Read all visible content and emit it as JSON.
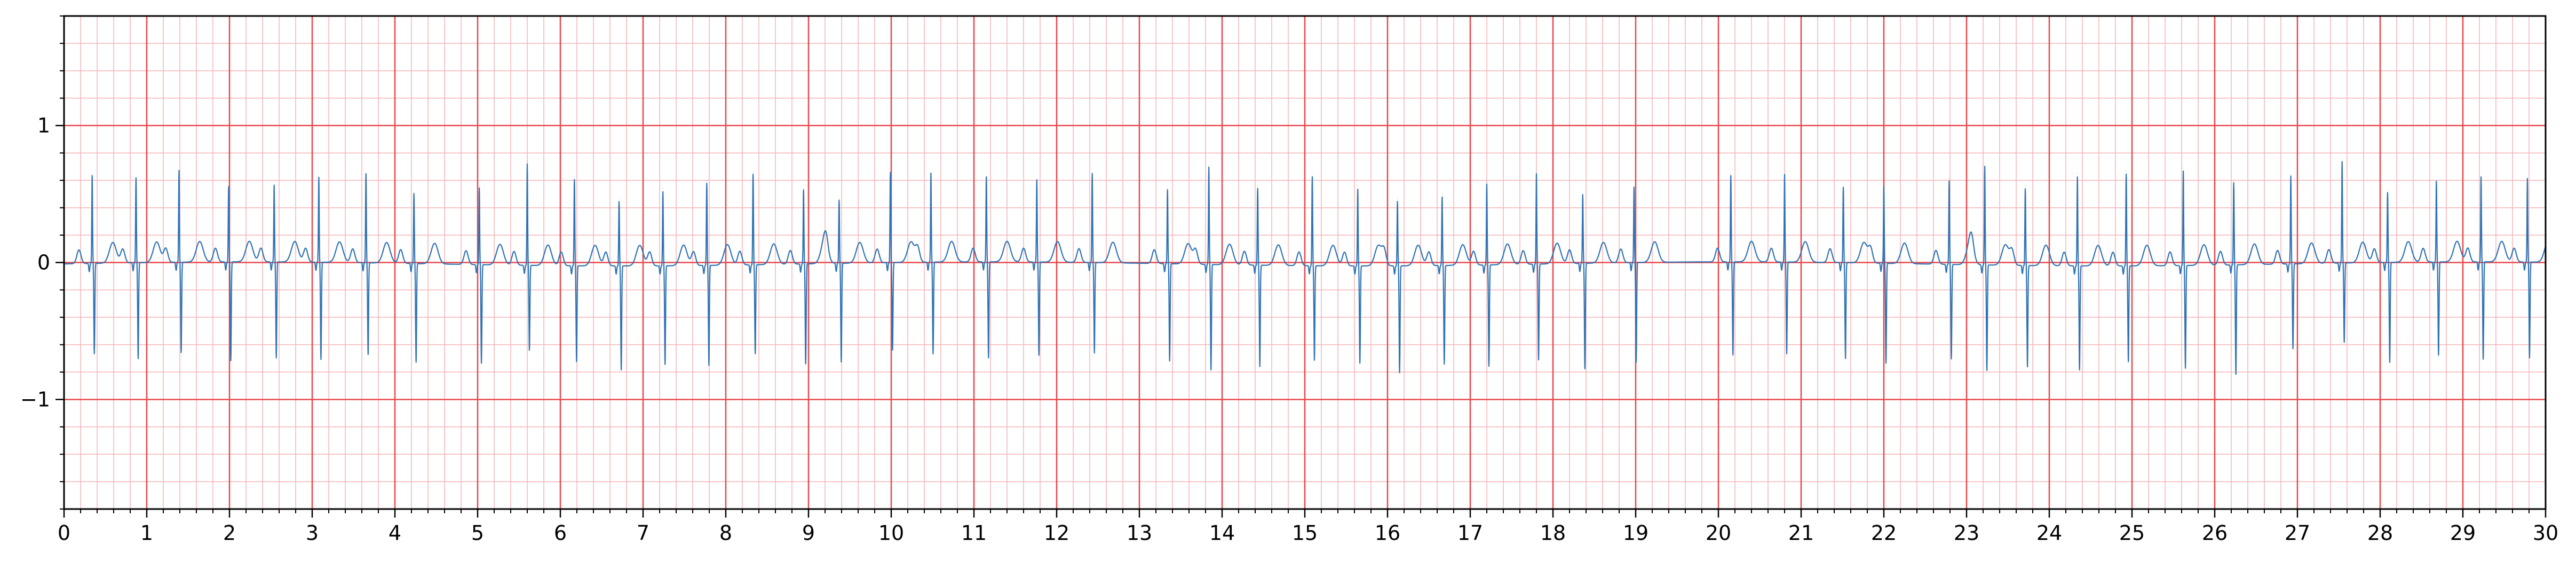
{
  "chart_data": {
    "type": "line",
    "title": "",
    "xlabel": "",
    "ylabel": "",
    "xlim": [
      0,
      30
    ],
    "ylim": [
      -1.8,
      1.8
    ],
    "x_ticks": [
      0,
      1,
      2,
      3,
      4,
      5,
      6,
      7,
      8,
      9,
      10,
      11,
      12,
      13,
      14,
      15,
      16,
      17,
      18,
      19,
      20,
      21,
      22,
      23,
      24,
      25,
      26,
      27,
      28,
      29,
      30
    ],
    "x_tick_labels": [
      "0",
      "1",
      "2",
      "3",
      "4",
      "5",
      "6",
      "7",
      "8",
      "9",
      "10",
      "11",
      "12",
      "13",
      "14",
      "15",
      "16",
      "17",
      "18",
      "19",
      "20",
      "21",
      "22",
      "23",
      "24",
      "25",
      "26",
      "27",
      "28",
      "29",
      "30"
    ],
    "y_ticks": [
      -1,
      0,
      1
    ],
    "y_tick_labels": [
      "−1",
      "0",
      "1"
    ],
    "grid": {
      "major_x": 1,
      "major_y": 1,
      "minor_x": 0.2,
      "minor_y": 0.2,
      "major_color": "#e8474a",
      "minor_color": "#f6b4b6"
    },
    "series": [
      {
        "name": "",
        "color": "#2f73b5",
        "beats": [
          {
            "t": 0.34,
            "r": 0.64,
            "s": -0.66
          },
          {
            "t": 0.87,
            "r": 0.62,
            "s": -0.7
          },
          {
            "t": 1.39,
            "r": 0.67,
            "s": -0.66
          },
          {
            "t": 1.99,
            "r": 0.55,
            "s": -0.72
          },
          {
            "t": 2.54,
            "r": 0.56,
            "s": -0.7
          },
          {
            "t": 3.08,
            "r": 0.62,
            "s": -0.71
          },
          {
            "t": 3.65,
            "r": 0.65,
            "s": -0.67
          },
          {
            "t": 4.23,
            "r": 0.51,
            "s": -0.72
          },
          {
            "t": 5.02,
            "r": 0.56,
            "s": -0.72
          },
          {
            "t": 5.6,
            "r": 0.74,
            "s": -0.62
          },
          {
            "t": 6.17,
            "r": 0.63,
            "s": -0.7
          },
          {
            "t": 6.71,
            "r": 0.47,
            "s": -0.76
          },
          {
            "t": 7.24,
            "r": 0.54,
            "s": -0.72
          },
          {
            "t": 7.77,
            "r": 0.6,
            "s": -0.73
          },
          {
            "t": 8.33,
            "r": 0.66,
            "s": -0.65
          },
          {
            "t": 8.94,
            "r": 0.54,
            "s": -0.73
          },
          {
            "t": 9.37,
            "r": 0.46,
            "s": -0.72
          },
          {
            "t": 9.99,
            "r": 0.66,
            "s": -0.64
          },
          {
            "t": 10.48,
            "r": 0.65,
            "s": -0.67
          },
          {
            "t": 11.15,
            "r": 0.62,
            "s": -0.7
          },
          {
            "t": 11.76,
            "r": 0.6,
            "s": -0.68
          },
          {
            "t": 12.43,
            "r": 0.65,
            "s": -0.66
          },
          {
            "t": 13.34,
            "r": 0.54,
            "s": -0.71
          },
          {
            "t": 13.84,
            "r": 0.71,
            "s": -0.77
          },
          {
            "t": 14.43,
            "r": 0.56,
            "s": -0.74
          },
          {
            "t": 15.09,
            "r": 0.65,
            "s": -0.69
          },
          {
            "t": 15.64,
            "r": 0.56,
            "s": -0.71
          },
          {
            "t": 16.12,
            "r": 0.47,
            "s": -0.78
          },
          {
            "t": 16.66,
            "r": 0.5,
            "s": -0.72
          },
          {
            "t": 17.2,
            "r": 0.59,
            "s": -0.74
          },
          {
            "t": 17.8,
            "r": 0.66,
            "s": -0.7
          },
          {
            "t": 18.36,
            "r": 0.5,
            "s": -0.77
          },
          {
            "t": 18.98,
            "r": 0.55,
            "s": -0.73
          },
          {
            "t": 20.15,
            "r": 0.63,
            "s": -0.68
          },
          {
            "t": 20.8,
            "r": 0.64,
            "s": -0.67
          },
          {
            "t": 21.51,
            "r": 0.55,
            "s": -0.7
          },
          {
            "t": 22.0,
            "r": 0.56,
            "s": -0.73
          },
          {
            "t": 22.79,
            "r": 0.61,
            "s": -0.69
          },
          {
            "t": 23.22,
            "r": 0.72,
            "s": -0.77
          },
          {
            "t": 23.71,
            "r": 0.56,
            "s": -0.74
          },
          {
            "t": 24.34,
            "r": 0.65,
            "s": -0.76
          },
          {
            "t": 24.93,
            "r": 0.67,
            "s": -0.7
          },
          {
            "t": 25.62,
            "r": 0.69,
            "s": -0.75
          },
          {
            "t": 26.23,
            "r": 0.6,
            "s": -0.8
          },
          {
            "t": 26.92,
            "r": 0.64,
            "s": -0.62
          },
          {
            "t": 27.54,
            "r": 0.74,
            "s": -0.58
          },
          {
            "t": 28.09,
            "r": 0.51,
            "s": -0.73
          },
          {
            "t": 28.68,
            "r": 0.59,
            "s": -0.68
          },
          {
            "t": 29.22,
            "r": 0.62,
            "s": -0.71
          },
          {
            "t": 29.78,
            "r": 0.61,
            "s": -0.7
          }
        ]
      }
    ]
  }
}
